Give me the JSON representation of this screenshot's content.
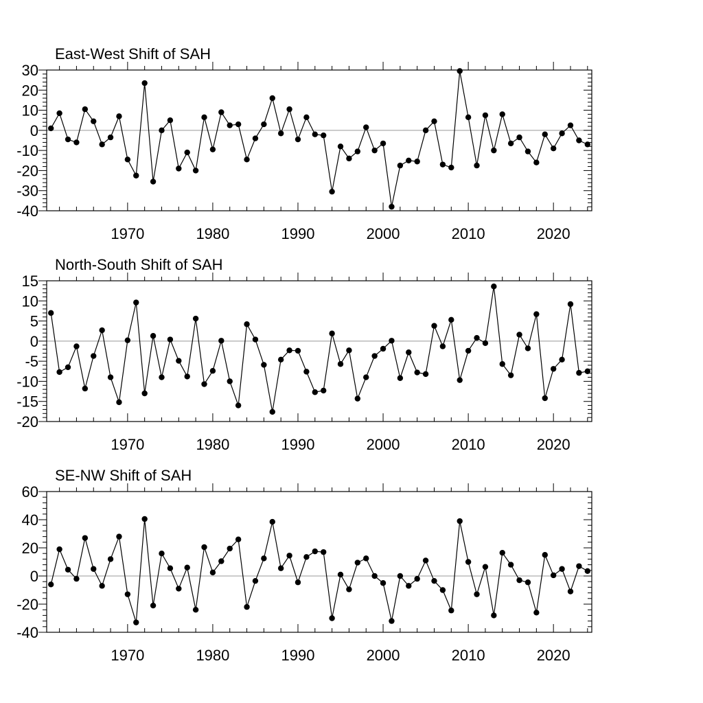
{
  "chart_data": [
    {
      "type": "line",
      "title": "East-West Shift of SAH",
      "ylim": [
        -40,
        30
      ],
      "yticks": [
        -40,
        -30,
        -20,
        -10,
        0,
        10,
        20,
        30
      ],
      "xlim": [
        1960.5,
        2024.5
      ],
      "xticks": [
        1970,
        1980,
        1990,
        2000,
        2010,
        2020
      ],
      "grid": false,
      "legend": "none",
      "x": [
        1961,
        1962,
        1963,
        1964,
        1965,
        1966,
        1967,
        1968,
        1969,
        1970,
        1971,
        1972,
        1973,
        1974,
        1975,
        1976,
        1977,
        1978,
        1979,
        1980,
        1981,
        1982,
        1983,
        1984,
        1985,
        1986,
        1987,
        1988,
        1989,
        1990,
        1991,
        1992,
        1993,
        1994,
        1995,
        1996,
        1997,
        1998,
        1999,
        2000,
        2001,
        2002,
        2003,
        2004,
        2005,
        2006,
        2007,
        2008,
        2009,
        2010,
        2011,
        2012,
        2013,
        2014,
        2015,
        2016,
        2017,
        2018,
        2019,
        2020,
        2021,
        2022,
        2023,
        2024
      ],
      "values": [
        1,
        8.5,
        -4.5,
        -6,
        10.5,
        4.5,
        -7,
        -3.5,
        7,
        -14.5,
        -22.5,
        23.5,
        -25.5,
        0,
        5,
        -19,
        -11,
        -20,
        6.5,
        -9.5,
        9,
        2.5,
        3,
        -14.5,
        -4,
        3,
        16,
        -1.5,
        10.5,
        -4.5,
        6.5,
        -2,
        -2.5,
        -30.5,
        -8,
        -14,
        -10.5,
        1.5,
        -10,
        -6.5,
        -38,
        -17.5,
        -15,
        -15.5,
        0,
        4.5,
        -17,
        -18.5,
        29.5,
        6.5,
        -17.5,
        7.5,
        -10,
        8,
        -6.5,
        -3.5,
        -10.5,
        -16,
        -2,
        -9,
        -1.5,
        2.5,
        -5,
        -7
      ]
    },
    {
      "type": "line",
      "title": "North-South Shift of SAH",
      "ylim": [
        -20,
        15
      ],
      "yticks": [
        -20,
        -15,
        -10,
        -5,
        0,
        5,
        10,
        15
      ],
      "xlim": [
        1960.5,
        2024.5
      ],
      "xticks": [
        1970,
        1980,
        1990,
        2000,
        2010,
        2020
      ],
      "grid": false,
      "legend": "none",
      "x": [
        1961,
        1962,
        1963,
        1964,
        1965,
        1966,
        1967,
        1968,
        1969,
        1970,
        1971,
        1972,
        1973,
        1974,
        1975,
        1976,
        1977,
        1978,
        1979,
        1980,
        1981,
        1982,
        1983,
        1984,
        1985,
        1986,
        1987,
        1988,
        1989,
        1990,
        1991,
        1992,
        1993,
        1994,
        1995,
        1996,
        1997,
        1998,
        1999,
        2000,
        2001,
        2002,
        2003,
        2004,
        2005,
        2006,
        2007,
        2008,
        2009,
        2010,
        2011,
        2012,
        2013,
        2014,
        2015,
        2016,
        2017,
        2018,
        2019,
        2020,
        2021,
        2022,
        2023,
        2024
      ],
      "values": [
        7,
        -7.7,
        -6.5,
        -1.3,
        -11.8,
        -3.7,
        2.7,
        -9,
        -15.2,
        0.2,
        9.6,
        -13,
        1.3,
        -9,
        0.4,
        -4.9,
        -8.8,
        5.6,
        -10.7,
        -7.4,
        0.1,
        -10,
        -16,
        4.2,
        0.4,
        -5.9,
        -17.6,
        -4.6,
        -2.3,
        -2.4,
        -7.6,
        -12.7,
        -12.3,
        1.9,
        -5.7,
        -2.3,
        -14.3,
        -9,
        -3.7,
        -1.9,
        0.1,
        -9.2,
        -2.8,
        -7.8,
        -8.2,
        3.8,
        -1.3,
        5.3,
        -9.7,
        -2.4,
        0.8,
        -0.5,
        13.6,
        -5.7,
        -8.5,
        1.6,
        -1.8,
        6.7,
        -14.2,
        -6.9,
        -4.6,
        9.2,
        -7.9,
        -7.5
      ]
    },
    {
      "type": "line",
      "title": "SE-NW Shift of SAH",
      "ylim": [
        -40,
        60
      ],
      "yticks": [
        -40,
        -20,
        0,
        20,
        40,
        60
      ],
      "xlim": [
        1960.5,
        2024.5
      ],
      "xticks": [
        1970,
        1980,
        1990,
        2000,
        2010,
        2020
      ],
      "grid": false,
      "legend": "none",
      "x": [
        1961,
        1962,
        1963,
        1964,
        1965,
        1966,
        1967,
        1968,
        1969,
        1970,
        1971,
        1972,
        1973,
        1974,
        1975,
        1976,
        1977,
        1978,
        1979,
        1980,
        1981,
        1982,
        1983,
        1984,
        1985,
        1986,
        1987,
        1988,
        1989,
        1990,
        1991,
        1992,
        1993,
        1994,
        1995,
        1996,
        1997,
        1998,
        1999,
        2000,
        2001,
        2002,
        2003,
        2004,
        2005,
        2006,
        2007,
        2008,
        2009,
        2010,
        2011,
        2012,
        2013,
        2014,
        2015,
        2016,
        2017,
        2018,
        2019,
        2020,
        2021,
        2022,
        2023,
        2024
      ],
      "values": [
        -6,
        19,
        4.5,
        -2,
        27,
        5,
        -7,
        12,
        28,
        -13,
        -33,
        40.5,
        -21,
        16,
        5.5,
        -9,
        6,
        -24,
        20.5,
        2.5,
        10.5,
        19.5,
        26,
        -22,
        -3.5,
        12.5,
        38.5,
        5.5,
        14.5,
        -4.5,
        13.5,
        17.5,
        17,
        -30,
        1,
        -9.5,
        9.5,
        12.5,
        0,
        -5,
        -32,
        0,
        -7,
        -2,
        11,
        -3.5,
        -10,
        -24.5,
        39,
        10,
        -13,
        6.5,
        -28,
        16.5,
        8,
        -3,
        -4.5,
        -26,
        15,
        0.5,
        5,
        -11,
        7,
        3.5
      ]
    }
  ]
}
